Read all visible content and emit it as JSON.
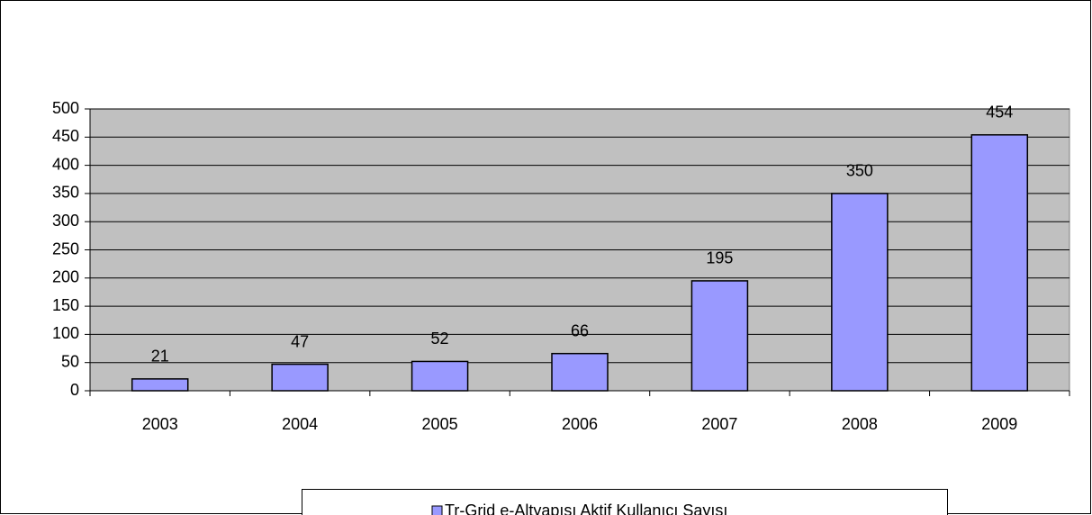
{
  "chart_data": {
    "type": "bar",
    "categories": [
      "2003",
      "2004",
      "2005",
      "2006",
      "2007",
      "2008",
      "2009"
    ],
    "series": [
      {
        "name": "Tr-Grid e-Altyapısı Aktif Kullanıcı Sayısı",
        "color": "#9999ff",
        "values": [
          21,
          47,
          52,
          66,
          195,
          350,
          454
        ]
      }
    ],
    "ylim": [
      0,
      500
    ],
    "yticks": [
      0,
      50,
      100,
      150,
      200,
      250,
      300,
      350,
      400,
      450,
      500
    ],
    "grid": true,
    "legend": "bottom"
  }
}
